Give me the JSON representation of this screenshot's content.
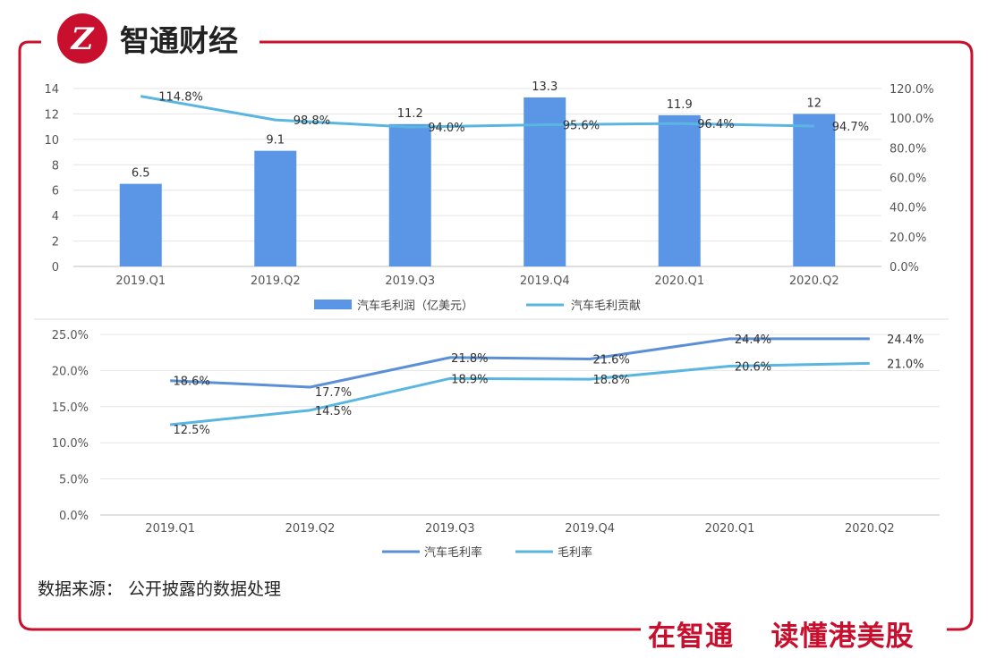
{
  "brand": {
    "logo_text": "智通财经",
    "slogan_part1": "在智通",
    "slogan_part2": "读懂港美股",
    "accent_color": "#c8102e"
  },
  "source_note": "数据来源： 公开披露的数据处理",
  "chart_data": [
    {
      "type": "bar",
      "categories": [
        "2019.Q1",
        "2019.Q2",
        "2019.Q3",
        "2019.Q4",
        "2020.Q1",
        "2020.Q2"
      ],
      "series": [
        {
          "name": "汽车毛利润（亿美元）",
          "kind": "bar",
          "axis": "left",
          "values": [
            6.5,
            9.1,
            11.2,
            13.3,
            11.9,
            12
          ],
          "labels": [
            "6.5",
            "9.1",
            "11.2",
            "13.3",
            "11.9",
            "12"
          ],
          "color": "#5b96e6"
        },
        {
          "name": "汽车毛利贡献",
          "kind": "line",
          "axis": "right",
          "values": [
            114.8,
            98.8,
            94.0,
            95.6,
            96.4,
            94.7
          ],
          "labels": [
            "114.8%",
            "98.8%",
            "94.0%",
            "95.6%",
            "96.4%",
            "94.7%"
          ],
          "color": "#5ab6e0"
        }
      ],
      "ylim_left": [
        0,
        14
      ],
      "yticks_left": [
        "0",
        "2",
        "4",
        "6",
        "8",
        "10",
        "12",
        "14"
      ],
      "ylim_right": [
        0,
        120
      ],
      "yticks_right": [
        "0.0%",
        "20.0%",
        "40.0%",
        "60.0%",
        "80.0%",
        "100.0%",
        "120.0%"
      ],
      "grid": true,
      "legend": "bottom"
    },
    {
      "type": "line",
      "categories": [
        "2019.Q1",
        "2019.Q2",
        "2019.Q3",
        "2019.Q4",
        "2020.Q1",
        "2020.Q2"
      ],
      "series": [
        {
          "name": "汽车毛利率",
          "values": [
            18.6,
            17.7,
            21.8,
            21.6,
            24.4,
            24.4
          ],
          "labels": [
            "18.6%",
            "17.7%",
            "21.8%",
            "21.6%",
            "24.4%",
            "24.4%"
          ],
          "color": "#5b8fd6"
        },
        {
          "name": "毛利率",
          "values": [
            12.5,
            14.5,
            18.9,
            18.8,
            20.6,
            21.0
          ],
          "labels": [
            "12.5%",
            "14.5%",
            "18.9%",
            "18.8%",
            "20.6%",
            "21.0%"
          ],
          "color": "#5ab6e0"
        }
      ],
      "ylim": [
        0,
        25
      ],
      "yticks": [
        "0.0%",
        "5.0%",
        "10.0%",
        "15.0%",
        "20.0%",
        "25.0%"
      ],
      "grid": true,
      "legend": "bottom"
    }
  ]
}
